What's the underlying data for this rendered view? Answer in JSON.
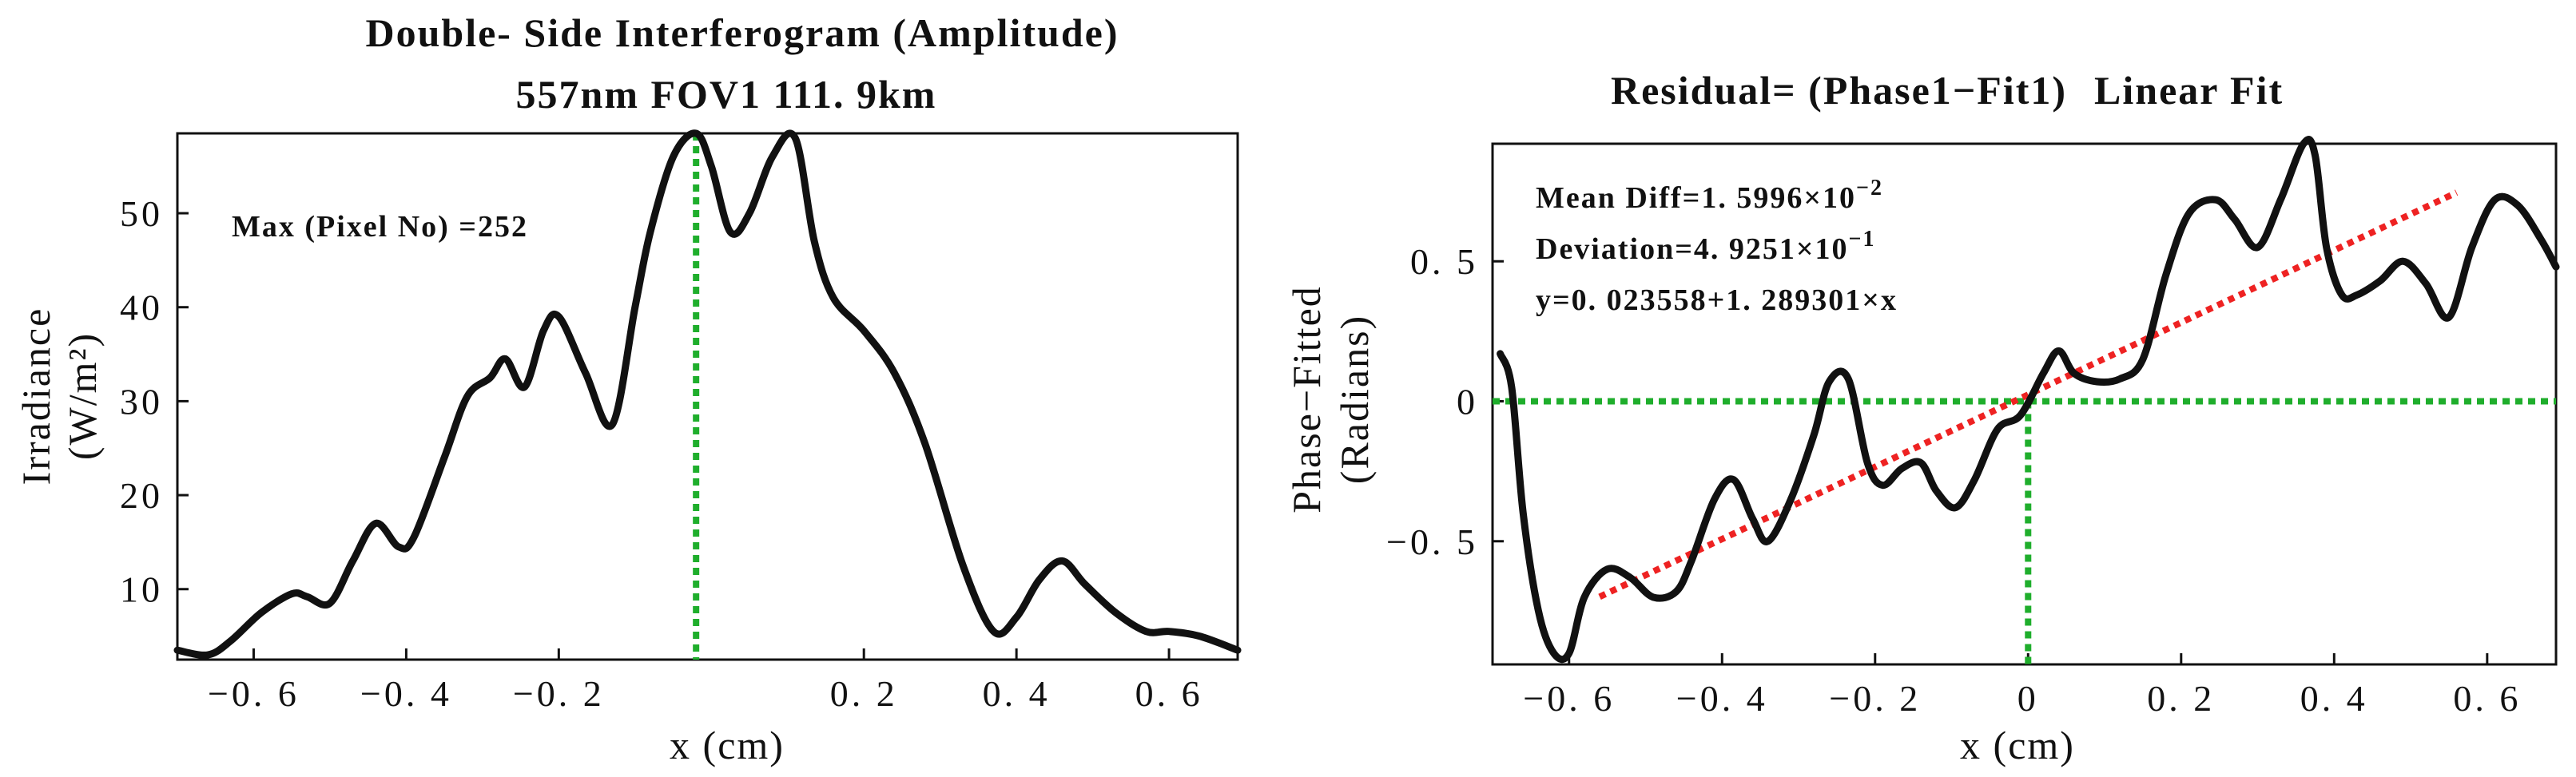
{
  "chart_data": [
    {
      "type": "line",
      "title_line1": "Double- Side Interferogram (Amplitude)",
      "title_line2": "557nm  FOV1  111. 9km",
      "xlabel": "x (cm)",
      "ylabel_line1": "Irradiance",
      "ylabel_line2": "(W/m²)",
      "xlim": [
        -0.7,
        0.69
      ],
      "ylim": [
        2.5,
        58.5
      ],
      "xticks": [
        -0.6,
        -0.4,
        -0.2,
        0.2,
        0.4,
        0.6
      ],
      "xtick_labels": [
        "−0. 6",
        "−0. 4",
        "−0. 2",
        "0. 2",
        "0. 4",
        "0. 6"
      ],
      "yticks": [
        10,
        20,
        30,
        40,
        50
      ],
      "ytick_labels": [
        "10",
        "20",
        "30",
        "40",
        "50"
      ],
      "annotation": "Max (Pixel No) =252",
      "marker_x": -0.02,
      "series": [
        {
          "name": "Interferogram",
          "color": "#111111",
          "x": [
            -0.7,
            -0.66,
            -0.63,
            -0.59,
            -0.55,
            -0.53,
            -0.5,
            -0.47,
            -0.44,
            -0.41,
            -0.39,
            -0.35,
            -0.32,
            -0.29,
            -0.27,
            -0.245,
            -0.22,
            -0.2,
            -0.165,
            -0.13,
            -0.1,
            -0.08,
            -0.05,
            -0.02,
            0.0,
            0.025,
            0.05,
            0.08,
            0.11,
            0.135,
            0.16,
            0.2,
            0.24,
            0.28,
            0.33,
            0.37,
            0.4,
            0.43,
            0.46,
            0.49,
            0.53,
            0.57,
            0.6,
            0.64,
            0.69
          ],
          "y": [
            3.5,
            3.0,
            4.5,
            7.5,
            9.5,
            9.2,
            8.5,
            13.0,
            17.0,
            14.5,
            15.5,
            24.0,
            30.5,
            32.5,
            34.5,
            31.5,
            37.5,
            39.0,
            33.0,
            27.5,
            40.0,
            48.0,
            56.0,
            58.5,
            55.0,
            48.0,
            50.0,
            56.0,
            58.0,
            47.0,
            41.0,
            37.5,
            33.0,
            25.5,
            12.5,
            5.5,
            7.0,
            11.0,
            13.0,
            10.5,
            7.5,
            5.5,
            5.5,
            5.0,
            3.5
          ]
        }
      ]
    },
    {
      "type": "line",
      "title_prefix": "Residual= (Phase1−Fit1)",
      "title_suffix": "Linear Fit",
      "title_suffix_color": "#ee2222",
      "xlabel": "x (cm)",
      "ylabel_line1": "Phase−Fitted",
      "ylabel_line2": "(Radians)",
      "xlim": [
        -0.7,
        0.69
      ],
      "ylim": [
        -0.94,
        0.92
      ],
      "xticks": [
        -0.6,
        -0.4,
        -0.2,
        0,
        0.2,
        0.4,
        0.6
      ],
      "xtick_labels": [
        "−0. 6",
        "−0. 4",
        "−0. 2",
        "0",
        "0. 2",
        "0. 4",
        "0. 6"
      ],
      "yticks": [
        0.5,
        0,
        -0.5
      ],
      "ytick_labels": [
        "0. 5",
        "0",
        "−0. 5"
      ],
      "annotation_mean": "Mean  Diff=1. 5996×10",
      "annotation_mean_exp": "−2",
      "annotation_dev": "Deviation=4. 9251×10",
      "annotation_dev_exp": "−1",
      "annotation_eq": "y=0. 023558+1. 289301×x",
      "marker_x": 0.0,
      "marker_y": 0.0,
      "fit": {
        "intercept": 0.023558,
        "slope": 1.289301,
        "x_range": [
          -0.56,
          0.56
        ]
      },
      "series": [
        {
          "name": "Residual",
          "color": "#111111",
          "x": [
            -0.69,
            -0.675,
            -0.66,
            -0.64,
            -0.62,
            -0.6,
            -0.58,
            -0.55,
            -0.52,
            -0.49,
            -0.46,
            -0.44,
            -0.41,
            -0.385,
            -0.36,
            -0.34,
            -0.31,
            -0.28,
            -0.26,
            -0.235,
            -0.21,
            -0.19,
            -0.165,
            -0.14,
            -0.12,
            -0.095,
            -0.07,
            -0.04,
            -0.01,
            0.02,
            0.04,
            0.06,
            0.09,
            0.12,
            0.15,
            0.18,
            0.21,
            0.245,
            0.27,
            0.3,
            0.33,
            0.36,
            0.375,
            0.39,
            0.41,
            0.43,
            0.46,
            0.49,
            0.52,
            0.55,
            0.58,
            0.61,
            0.64,
            0.67,
            0.69
          ],
          "y": [
            0.17,
            0.05,
            -0.4,
            -0.75,
            -0.9,
            -0.9,
            -0.7,
            -0.6,
            -0.63,
            -0.7,
            -0.68,
            -0.57,
            -0.35,
            -0.28,
            -0.42,
            -0.5,
            -0.35,
            -0.12,
            0.07,
            0.08,
            -0.22,
            -0.3,
            -0.24,
            -0.22,
            -0.32,
            -0.38,
            -0.28,
            -0.1,
            -0.05,
            0.1,
            0.18,
            0.1,
            0.07,
            0.08,
            0.15,
            0.45,
            0.67,
            0.72,
            0.65,
            0.55,
            0.72,
            0.92,
            0.88,
            0.55,
            0.38,
            0.38,
            0.43,
            0.5,
            0.42,
            0.3,
            0.55,
            0.72,
            0.7,
            0.58,
            0.48
          ]
        }
      ]
    }
  ]
}
